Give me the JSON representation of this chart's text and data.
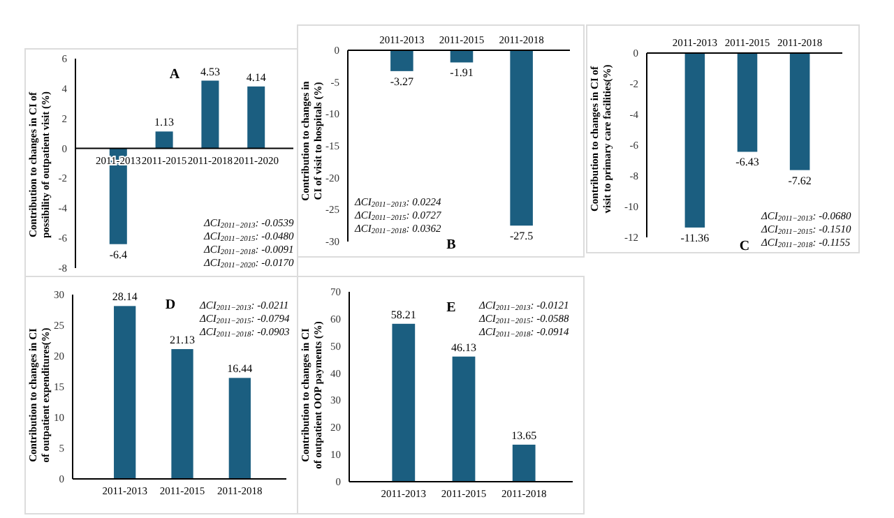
{
  "chart_data": [
    {
      "type": "bar",
      "ylabel": "Contribution to changes in CI of possibility of outpatient visit (%)",
      "categories": [
        "2011-2013",
        "2011-2015",
        "2011-2018",
        "2011-2020"
      ],
      "values": [
        -6.4,
        1.13,
        4.53,
        4.14
      ],
      "color": "#1b5e80",
      "ylim": [
        -8,
        6
      ],
      "yticks": [
        -8,
        -6,
        -4,
        -2,
        0,
        2,
        4,
        6
      ],
      "data_labels": true,
      "annotations": [
        "A",
        "ΔCI$_{2011−2013}$: -0.0539",
        "ΔCI$_{2011−2015}$: -0.0480",
        "ΔCI$_{2011−2018}$: -0.0091",
        "ΔCI$_{2011−2020}$: -0.0170"
      ]
    },
    {
      "type": "bar",
      "ylabel": "Contribution to changes in CI of visit to hospitals (%)",
      "categories": [
        "2011-2013",
        "2011-2015",
        "2011-2018"
      ],
      "values": [
        -3.27,
        -1.91,
        -27.5
      ],
      "color": "#1b5e80",
      "ylim": [
        -30,
        0
      ],
      "yticks": [
        -30,
        -25,
        -20,
        -15,
        -10,
        -5,
        0
      ],
      "data_labels": true,
      "annotations": [
        "B",
        "ΔCI$_{2011−2013}$: 0.0224",
        "ΔCI$_{2011−2015}$: 0.0727",
        "ΔCI$_{2011−2018}$: 0.0362"
      ]
    },
    {
      "type": "bar",
      "ylabel": "Contribution to changes in CI of visit to primary care facilities(%)",
      "categories": [
        "2011-2013",
        "2011-2015",
        "2011-2018"
      ],
      "values": [
        -11.36,
        -6.43,
        -7.62
      ],
      "color": "#1b5e80",
      "ylim": [
        -12,
        0
      ],
      "yticks": [
        -12,
        -10,
        -8,
        -6,
        -4,
        -2,
        0
      ],
      "data_labels": true,
      "annotations": [
        "C",
        "ΔCI$_{2011−2013}$: -0.0680",
        "ΔCI$_{2011−2015}$: -0.1510",
        "ΔCI$_{2011−2018}$: -0.1155"
      ]
    },
    {
      "type": "bar",
      "ylabel": "Contribution to changes in CI of outpatient expenditures(%)",
      "categories": [
        "2011-2013",
        "2011-2015",
        "2011-2018"
      ],
      "values": [
        28.14,
        21.13,
        16.44
      ],
      "color": "#1b5e80",
      "ylim": [
        0,
        30
      ],
      "yticks": [
        0,
        5,
        10,
        15,
        20,
        25,
        30
      ],
      "data_labels": true,
      "annotations": [
        "D",
        "ΔCI$_{2011−2013}$: -0.0211",
        "ΔCI$_{2011−2015}$: -0.0794",
        "ΔCI$_{2011−2018}$: -0.0903"
      ]
    },
    {
      "type": "bar",
      "ylabel": "Contribution to changes in CI of outpatient OOP payments (%)",
      "categories": [
        "2011-2013",
        "2011-2015",
        "2011-2018"
      ],
      "values": [
        58.21,
        46.13,
        13.65
      ],
      "color": "#1b5e80",
      "ylim": [
        0,
        70
      ],
      "yticks": [
        0,
        10,
        20,
        30,
        40,
        50,
        60,
        70
      ],
      "data_labels": true,
      "annotations": [
        "E",
        "ΔCI$_{2011−2013}$: -0.0121",
        "ΔCI$_{2011−2015}$: -0.0588",
        "ΔCI$_{2011−2018}$: -0.0914"
      ]
    }
  ]
}
